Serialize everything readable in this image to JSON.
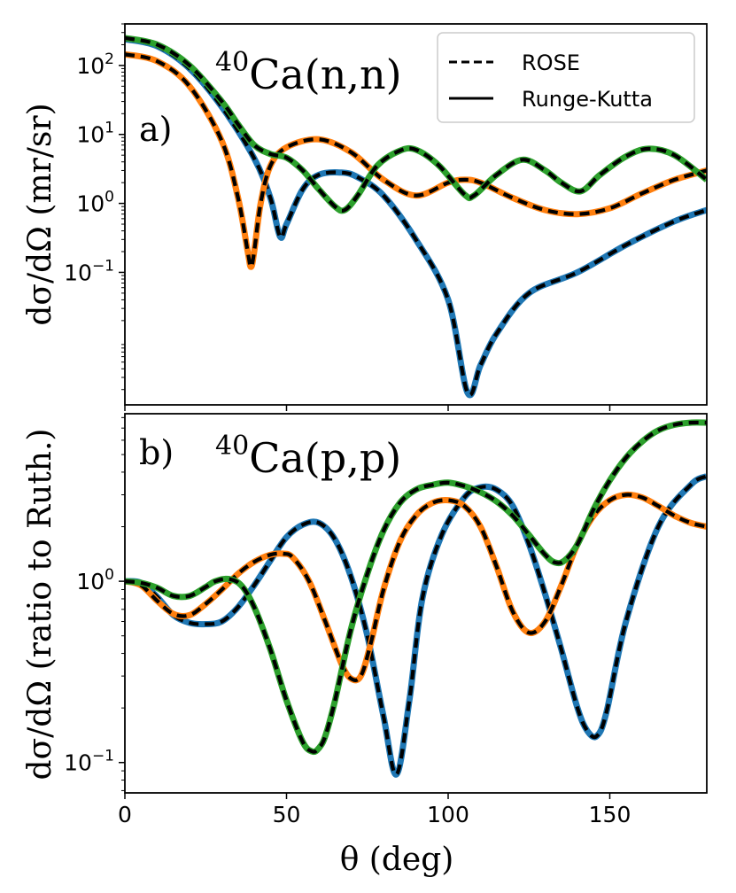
{
  "chart_data": [
    {
      "type": "line",
      "panel": "a)",
      "title": "40Ca(n,n)",
      "title_superscript": "40",
      "title_main": "Ca(n,n)",
      "ylabel": "dσ/dΩ (mr/sr)",
      "xlabel": "",
      "yscale": "log",
      "xlim": [
        0,
        180
      ],
      "ylim": [
        0.0012,
        400
      ],
      "xticks": [
        0,
        50,
        100,
        150
      ],
      "yticks": [
        {
          "value": 100,
          "base": "10",
          "exp": "2"
        },
        {
          "value": 10,
          "base": "10",
          "exp": "1"
        },
        {
          "value": 1,
          "base": "10",
          "exp": "0"
        },
        {
          "value": 0.1,
          "base": "10",
          "exp": "−1"
        }
      ],
      "legend": {
        "position": "top-right",
        "entries": [
          {
            "label": "ROSE",
            "style": "dashed"
          },
          {
            "label": "Runge-Kutta",
            "style": "solid"
          }
        ]
      },
      "series": [
        {
          "name": "blue",
          "color": "#1f77b4",
          "x": [
            0,
            10,
            20,
            30,
            40,
            45,
            48,
            50,
            55,
            60,
            67,
            72,
            80,
            90,
            100,
            106,
            110,
            115,
            125,
            140,
            155,
            170,
            180
          ],
          "y": [
            240,
            190,
            90,
            25,
            4.5,
            1.2,
            0.33,
            0.5,
            1.6,
            2.6,
            2.8,
            2.4,
            1.3,
            0.3,
            0.04,
            0.0018,
            0.0045,
            0.013,
            0.05,
            0.1,
            0.25,
            0.55,
            0.8
          ]
        },
        {
          "name": "orange",
          "color": "#ff7f0e",
          "x": [
            0,
            10,
            20,
            30,
            35,
            38,
            39,
            40,
            42,
            45,
            50,
            60,
            70,
            80,
            90,
            100,
            105,
            110,
            120,
            130,
            140,
            150,
            160,
            170,
            180
          ],
          "y": [
            145,
            115,
            50,
            8,
            1.2,
            0.2,
            0.12,
            0.2,
            1.0,
            3.5,
            6.5,
            8.5,
            5.5,
            2.2,
            1.3,
            2,
            2.2,
            2,
            1.2,
            0.8,
            0.7,
            0.85,
            1.4,
            2.2,
            3
          ]
        },
        {
          "name": "green",
          "color": "#2ca02c",
          "x": [
            0,
            10,
            20,
            30,
            35,
            40,
            45,
            50,
            55,
            60,
            65,
            68,
            72,
            78,
            85,
            90,
            97,
            105,
            108,
            115,
            123,
            130,
            135,
            141,
            147,
            155,
            162,
            170,
            180
          ],
          "y": [
            250,
            200,
            100,
            30,
            14,
            7,
            5.2,
            4.6,
            3,
            1.6,
            0.9,
            0.8,
            1.3,
            3.5,
            5.8,
            6,
            3.6,
            1.35,
            1.3,
            2.6,
            4.3,
            3,
            2,
            1.5,
            2.6,
            4.8,
            6.2,
            5,
            2.2
          ]
        }
      ]
    },
    {
      "type": "line",
      "panel": "b)",
      "title": "40Ca(p,p)",
      "title_superscript": "40",
      "title_main": "Ca(p,p)",
      "ylabel": "dσ/dΩ (ratio to Ruth.)",
      "xlabel": "θ (deg)",
      "yscale": "log",
      "xlim": [
        0,
        180
      ],
      "ylim": [
        0.068,
        8.4
      ],
      "xticks": [
        0,
        50,
        100,
        150
      ],
      "yticks": [
        {
          "value": 1,
          "base": "10",
          "exp": "0"
        },
        {
          "value": 0.1,
          "base": "10",
          "exp": "−1"
        }
      ],
      "series": [
        {
          "name": "blue",
          "color": "#1f77b4",
          "x": [
            0,
            5,
            10,
            15,
            20,
            25,
            30,
            35,
            40,
            45,
            50,
            55,
            60,
            65,
            70,
            75,
            80,
            84,
            88,
            92,
            98,
            105,
            110,
            115,
            120,
            125,
            130,
            135,
            140,
            143,
            146,
            149,
            155,
            165,
            175,
            180
          ],
          "y": [
            1,
            0.98,
            0.82,
            0.65,
            0.59,
            0.58,
            0.6,
            0.72,
            0.95,
            1.3,
            1.75,
            2.05,
            2.1,
            1.7,
            1.05,
            0.5,
            0.18,
            0.086,
            0.22,
            0.8,
            1.8,
            2.9,
            3.3,
            3.2,
            2.6,
            1.6,
            0.85,
            0.42,
            0.2,
            0.15,
            0.14,
            0.19,
            0.6,
            2.0,
            3.4,
            3.8
          ]
        },
        {
          "name": "orange",
          "color": "#ff7f0e",
          "x": [
            0,
            5,
            10,
            15,
            20,
            25,
            30,
            35,
            40,
            45,
            49,
            52,
            57,
            62,
            67,
            70,
            73,
            76,
            80,
            85,
            90,
            95,
            100,
            105,
            110,
            115,
            120,
            125,
            130,
            135,
            140,
            145,
            150,
            155,
            160,
            165,
            170,
            175,
            180
          ],
          "y": [
            1,
            0.95,
            0.78,
            0.66,
            0.65,
            0.75,
            0.9,
            1.1,
            1.28,
            1.4,
            1.42,
            1.35,
            1.0,
            0.6,
            0.35,
            0.29,
            0.3,
            0.45,
            0.9,
            1.65,
            2.3,
            2.7,
            2.8,
            2.6,
            2.0,
            1.2,
            0.68,
            0.52,
            0.6,
            0.95,
            1.6,
            2.3,
            2.8,
            3.0,
            2.9,
            2.6,
            2.3,
            2.1,
            2.0
          ]
        },
        {
          "name": "green",
          "color": "#2ca02c",
          "x": [
            0,
            5,
            10,
            15,
            20,
            25,
            28,
            32,
            36,
            40,
            45,
            50,
            55,
            58,
            60,
            62,
            65,
            70,
            75,
            80,
            85,
            90,
            95,
            100,
            105,
            110,
            115,
            120,
            125,
            130,
            133,
            136,
            140,
            145,
            150,
            155,
            160,
            165,
            170,
            175,
            180
          ],
          "y": [
            1,
            0.98,
            0.92,
            0.83,
            0.83,
            0.93,
            1.0,
            1.03,
            0.95,
            0.72,
            0.42,
            0.22,
            0.13,
            0.115,
            0.12,
            0.14,
            0.22,
            0.55,
            1.1,
            1.9,
            2.7,
            3.2,
            3.4,
            3.5,
            3.35,
            3.1,
            2.75,
            2.3,
            1.8,
            1.4,
            1.27,
            1.3,
            1.6,
            2.5,
            3.6,
            4.8,
            5.9,
            6.8,
            7.3,
            7.5,
            7.5
          ]
        }
      ]
    }
  ]
}
